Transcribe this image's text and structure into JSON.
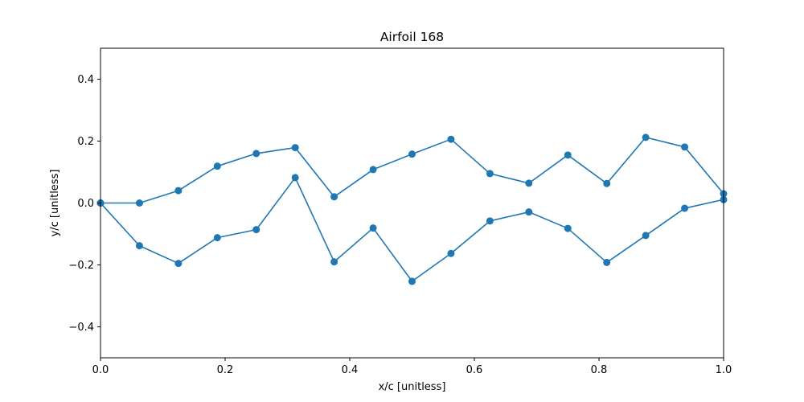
{
  "chart_data": {
    "type": "line",
    "title": "Airfoil 168",
    "xlabel": "x/c [unitless]",
    "ylabel": "y/c [unitless]",
    "xlim": [
      0.0,
      1.0
    ],
    "ylim": [
      -0.5,
      0.5
    ],
    "xticks": [
      "0.0",
      "0.2",
      "0.4",
      "0.6",
      "0.8",
      "1.0"
    ],
    "yticks": [
      "−0.4",
      "−0.2",
      "0.0",
      "0.2",
      "0.4"
    ],
    "grid": false,
    "series": [
      {
        "color": "#1f77b4",
        "marker": "circle",
        "x": [
          0.0,
          0.0625,
          0.125,
          0.1875,
          0.25,
          0.3125,
          0.375,
          0.4375,
          0.5,
          0.5625,
          0.625,
          0.6875,
          0.75,
          0.8125,
          0.875,
          0.9375,
          1.0
        ],
        "y": [
          0.0,
          0.0,
          0.04,
          0.119,
          0.16,
          0.179,
          0.02,
          0.108,
          0.158,
          0.206,
          0.095,
          0.064,
          0.155,
          0.063,
          0.212,
          0.181,
          0.03
        ]
      },
      {
        "color": "#1f77b4",
        "marker": "circle",
        "x": [
          0.0,
          0.0625,
          0.125,
          0.1875,
          0.25,
          0.3125,
          0.375,
          0.4375,
          0.5,
          0.5625,
          0.625,
          0.6875,
          0.75,
          0.8125,
          0.875,
          0.9375,
          1.0
        ],
        "y": [
          0.0,
          -0.138,
          -0.195,
          -0.112,
          -0.086,
          0.082,
          -0.19,
          -0.081,
          -0.253,
          -0.163,
          -0.058,
          -0.029,
          -0.082,
          -0.192,
          -0.105,
          -0.017,
          0.011
        ]
      }
    ]
  }
}
